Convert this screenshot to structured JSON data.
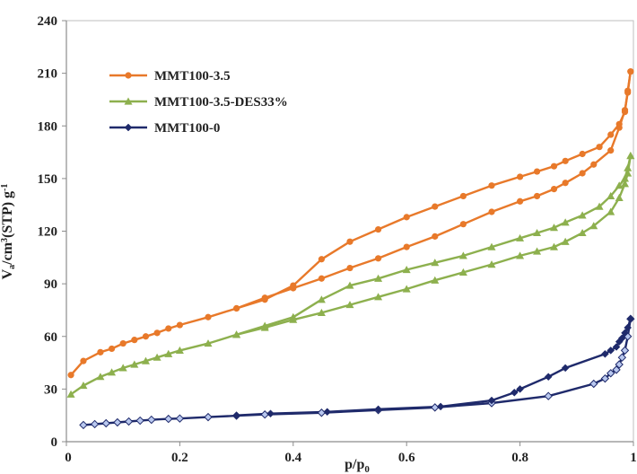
{
  "chart_data": {
    "type": "line",
    "xlabel": "p/p₀",
    "ylabel": "Vₐ/cm³(STP)g⁻¹",
    "xlim": [
      0,
      1
    ],
    "ylim": [
      0,
      240
    ],
    "x_ticks": [
      "0",
      "0.2",
      "0.4",
      "0.6",
      "0.8",
      "1"
    ],
    "x_tick_values": [
      0,
      0.2,
      0.4,
      0.6,
      0.8,
      1.0
    ],
    "y_ticks": [
      "0",
      "30",
      "60",
      "90",
      "120",
      "150",
      "180",
      "210",
      "240"
    ],
    "y_tick_values": [
      0,
      30,
      60,
      90,
      120,
      150,
      180,
      210,
      240
    ],
    "grid": false,
    "legend_position": "top-left",
    "series": [
      {
        "name": "MMT100-3.5",
        "color": "#E8792A",
        "marker": "circle",
        "adsorption": [
          [
            0.008,
            38
          ],
          [
            0.03,
            46
          ],
          [
            0.06,
            51
          ],
          [
            0.08,
            53
          ],
          [
            0.1,
            56
          ],
          [
            0.12,
            58
          ],
          [
            0.14,
            60
          ],
          [
            0.16,
            62
          ],
          [
            0.18,
            64.5
          ],
          [
            0.2,
            66.5
          ],
          [
            0.25,
            71
          ],
          [
            0.3,
            76
          ],
          [
            0.35,
            82
          ],
          [
            0.4,
            87.5
          ],
          [
            0.45,
            93
          ],
          [
            0.5,
            99
          ],
          [
            0.55,
            104.5
          ],
          [
            0.6,
            111
          ],
          [
            0.65,
            117
          ],
          [
            0.7,
            124
          ],
          [
            0.75,
            131
          ],
          [
            0.8,
            137
          ],
          [
            0.83,
            140
          ],
          [
            0.86,
            144
          ],
          [
            0.88,
            147.5
          ],
          [
            0.91,
            153
          ],
          [
            0.93,
            158
          ],
          [
            0.96,
            166
          ],
          [
            0.975,
            179
          ],
          [
            0.985,
            189
          ],
          [
            0.99,
            199
          ],
          [
            0.995,
            211
          ]
        ],
        "desorption": [
          [
            0.995,
            211
          ],
          [
            0.99,
            200
          ],
          [
            0.985,
            188
          ],
          [
            0.975,
            181
          ],
          [
            0.96,
            175
          ],
          [
            0.94,
            168
          ],
          [
            0.91,
            164
          ],
          [
            0.88,
            160
          ],
          [
            0.86,
            157
          ],
          [
            0.83,
            154
          ],
          [
            0.8,
            151
          ],
          [
            0.75,
            146
          ],
          [
            0.7,
            140
          ],
          [
            0.65,
            134
          ],
          [
            0.6,
            128
          ],
          [
            0.55,
            121
          ],
          [
            0.5,
            114
          ],
          [
            0.45,
            104
          ],
          [
            0.4,
            89
          ],
          [
            0.35,
            81
          ],
          [
            0.3,
            76
          ]
        ]
      },
      {
        "name": "MMT100-3.5-DES33%",
        "color": "#8DB04E",
        "marker": "triangle",
        "adsorption": [
          [
            0.008,
            27
          ],
          [
            0.03,
            32
          ],
          [
            0.06,
            37
          ],
          [
            0.08,
            39.5
          ],
          [
            0.1,
            42
          ],
          [
            0.12,
            44
          ],
          [
            0.14,
            46
          ],
          [
            0.16,
            48
          ],
          [
            0.18,
            50
          ],
          [
            0.2,
            52
          ],
          [
            0.25,
            56
          ],
          [
            0.3,
            61
          ],
          [
            0.35,
            65
          ],
          [
            0.4,
            69.5
          ],
          [
            0.45,
            73.5
          ],
          [
            0.5,
            78
          ],
          [
            0.55,
            82.5
          ],
          [
            0.6,
            87
          ],
          [
            0.65,
            92
          ],
          [
            0.7,
            96.5
          ],
          [
            0.75,
            101
          ],
          [
            0.8,
            106
          ],
          [
            0.83,
            108.5
          ],
          [
            0.86,
            111
          ],
          [
            0.88,
            114
          ],
          [
            0.91,
            119
          ],
          [
            0.93,
            123
          ],
          [
            0.96,
            131
          ],
          [
            0.975,
            139
          ],
          [
            0.985,
            147
          ],
          [
            0.99,
            153
          ],
          [
            0.995,
            163
          ]
        ],
        "desorption": [
          [
            0.995,
            163
          ],
          [
            0.99,
            156
          ],
          [
            0.985,
            150
          ],
          [
            0.975,
            146
          ],
          [
            0.96,
            140
          ],
          [
            0.94,
            134
          ],
          [
            0.91,
            129
          ],
          [
            0.88,
            125
          ],
          [
            0.86,
            122
          ],
          [
            0.83,
            119
          ],
          [
            0.8,
            116
          ],
          [
            0.75,
            111
          ],
          [
            0.7,
            106
          ],
          [
            0.65,
            102
          ],
          [
            0.6,
            98
          ],
          [
            0.55,
            93
          ],
          [
            0.5,
            89
          ],
          [
            0.45,
            81
          ],
          [
            0.4,
            71
          ],
          [
            0.35,
            66
          ],
          [
            0.3,
            61
          ]
        ]
      },
      {
        "name": "MMT100-0",
        "color": "#1F2A6B",
        "marker": "diamond",
        "adsorption": [
          [
            0.03,
            9.5
          ],
          [
            0.05,
            10
          ],
          [
            0.07,
            10.5
          ],
          [
            0.09,
            11
          ],
          [
            0.11,
            11.5
          ],
          [
            0.13,
            12
          ],
          [
            0.15,
            12.5
          ],
          [
            0.18,
            13
          ],
          [
            0.2,
            13.2
          ],
          [
            0.25,
            14
          ],
          [
            0.3,
            14.8
          ],
          [
            0.35,
            15.5
          ],
          [
            0.45,
            16.5
          ],
          [
            0.55,
            18
          ],
          [
            0.65,
            19.5
          ],
          [
            0.75,
            22
          ],
          [
            0.85,
            26
          ],
          [
            0.93,
            33
          ],
          [
            0.95,
            36
          ],
          [
            0.96,
            39
          ],
          [
            0.97,
            41
          ],
          [
            0.975,
            44
          ],
          [
            0.98,
            48
          ],
          [
            0.985,
            52
          ],
          [
            0.99,
            60
          ],
          [
            0.995,
            70
          ]
        ],
        "desorption": [
          [
            0.995,
            70
          ],
          [
            0.99,
            65
          ],
          [
            0.985,
            62
          ],
          [
            0.98,
            59
          ],
          [
            0.975,
            57
          ],
          [
            0.97,
            54
          ],
          [
            0.96,
            52
          ],
          [
            0.95,
            50
          ],
          [
            0.88,
            42
          ],
          [
            0.85,
            37
          ],
          [
            0.8,
            30
          ],
          [
            0.79,
            28
          ],
          [
            0.75,
            23.5
          ],
          [
            0.66,
            20
          ],
          [
            0.55,
            18.5
          ],
          [
            0.46,
            17
          ],
          [
            0.36,
            16
          ],
          [
            0.3,
            15
          ]
        ]
      }
    ]
  }
}
